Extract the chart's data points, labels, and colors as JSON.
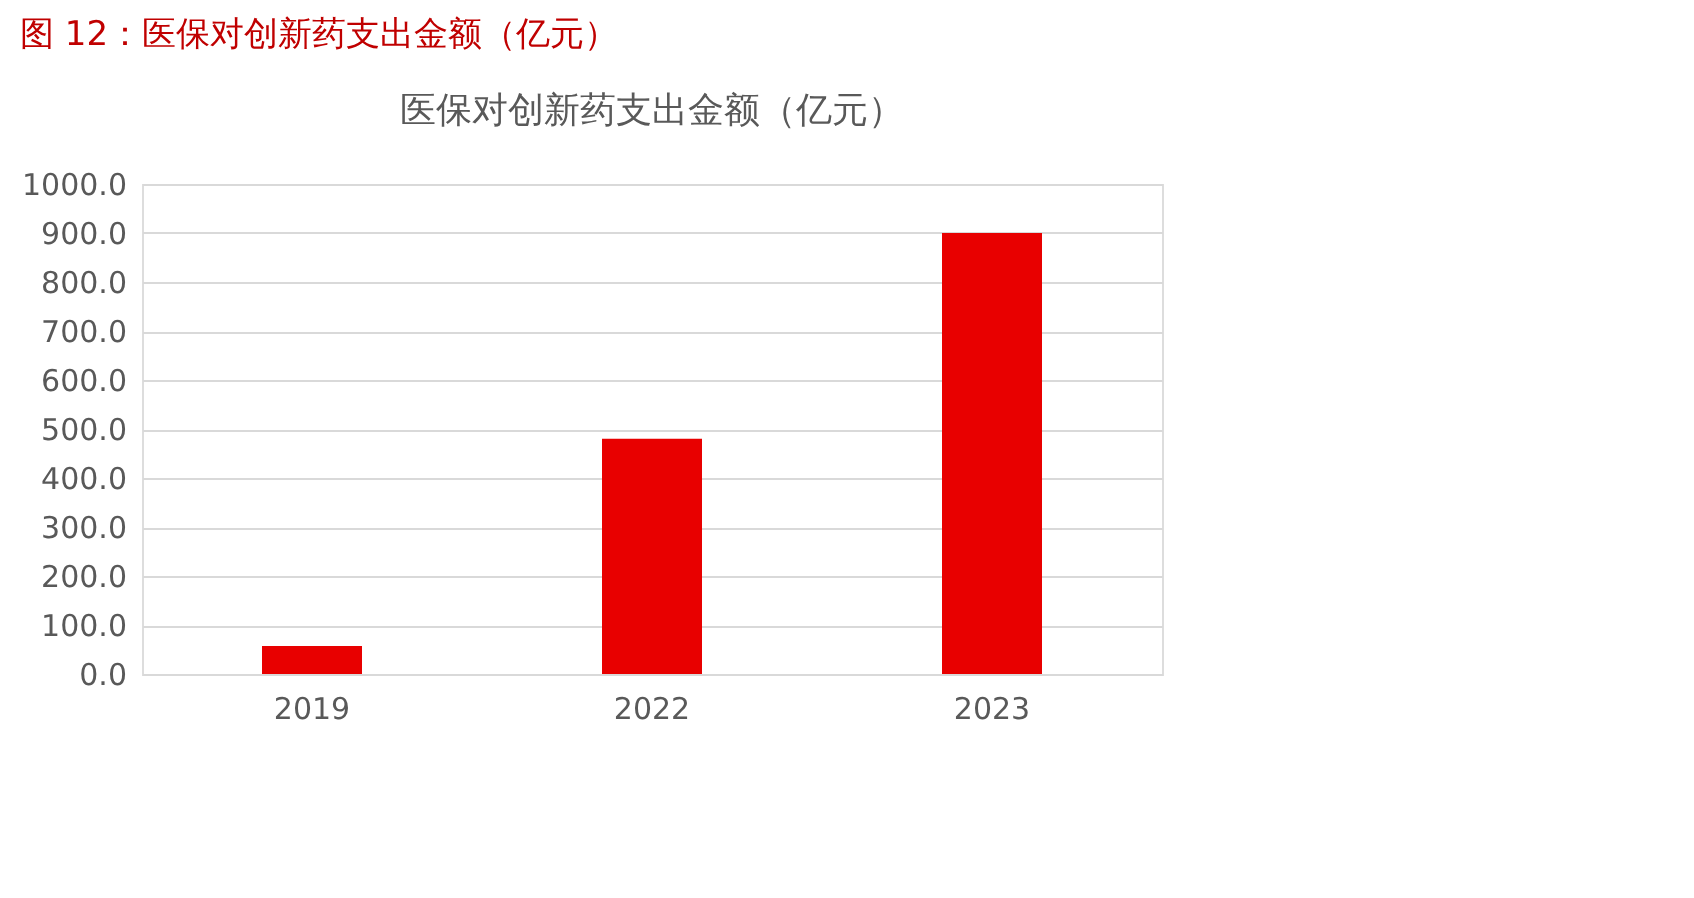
{
  "chart_data": {
    "type": "bar",
    "title": "图 12：医保对创新药支出金额（亿元）",
    "subtitle": "医保对创新药支出金额（亿元）",
    "categories": [
      "2019",
      "2022",
      "2023"
    ],
    "values": [
      57,
      480,
      900
    ],
    "color": "#e80000",
    "ylim": [
      0,
      1000
    ],
    "yticks": [
      {
        "value": 0,
        "label": "0.0"
      },
      {
        "value": 100,
        "label": "100.0"
      },
      {
        "value": 200,
        "label": "200.0"
      },
      {
        "value": 300,
        "label": "300.0"
      },
      {
        "value": 400,
        "label": "400.0"
      },
      {
        "value": 500,
        "label": "500.0"
      },
      {
        "value": 600,
        "label": "600.0"
      },
      {
        "value": 700,
        "label": "700.0"
      },
      {
        "value": 800,
        "label": "800.0"
      },
      {
        "value": 900,
        "label": "900.0"
      },
      {
        "value": 1000,
        "label": "1000.0"
      }
    ],
    "grid": "y"
  }
}
